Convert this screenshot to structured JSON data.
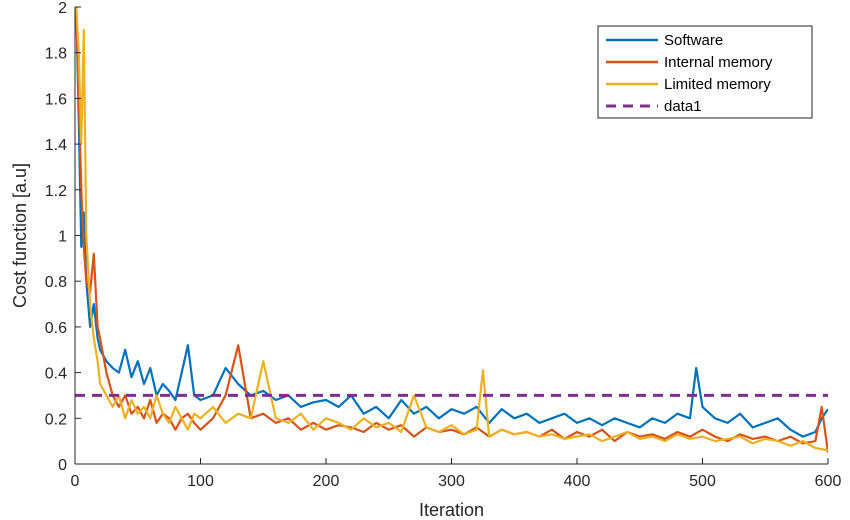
{
  "chart_data": {
    "type": "line",
    "title": "",
    "xlabel": "Iteration",
    "ylabel": "Cost function [a.u]",
    "xlim": [
      0,
      600
    ],
    "ylim": [
      0,
      2
    ],
    "xticks": [
      0,
      100,
      200,
      300,
      400,
      500,
      600
    ],
    "yticks": [
      0,
      0.2,
      0.4,
      0.6,
      0.8,
      1,
      1.2,
      1.4,
      1.6,
      1.8,
      2
    ],
    "grid": false,
    "legend_position": "top-right",
    "series": [
      {
        "name": "Software",
        "color": "#0072BD",
        "style": "solid",
        "x": [
          1,
          3,
          5,
          7,
          9,
          12,
          15,
          18,
          20,
          25,
          30,
          35,
          40,
          45,
          50,
          55,
          60,
          65,
          70,
          75,
          80,
          85,
          90,
          95,
          100,
          110,
          120,
          130,
          140,
          150,
          160,
          170,
          180,
          190,
          200,
          210,
          220,
          230,
          240,
          250,
          260,
          270,
          280,
          290,
          300,
          310,
          320,
          330,
          340,
          350,
          360,
          370,
          380,
          390,
          400,
          410,
          420,
          430,
          440,
          450,
          460,
          470,
          480,
          490,
          495,
          500,
          510,
          520,
          530,
          540,
          550,
          560,
          570,
          580,
          590,
          595,
          600
        ],
        "y": [
          2.0,
          1.5,
          0.95,
          1.1,
          0.8,
          0.6,
          0.7,
          0.55,
          0.5,
          0.45,
          0.42,
          0.4,
          0.5,
          0.38,
          0.45,
          0.35,
          0.42,
          0.3,
          0.35,
          0.32,
          0.28,
          0.4,
          0.52,
          0.3,
          0.28,
          0.3,
          0.42,
          0.35,
          0.3,
          0.32,
          0.28,
          0.3,
          0.25,
          0.27,
          0.28,
          0.25,
          0.3,
          0.22,
          0.25,
          0.2,
          0.28,
          0.22,
          0.25,
          0.2,
          0.24,
          0.22,
          0.25,
          0.18,
          0.24,
          0.2,
          0.22,
          0.18,
          0.2,
          0.22,
          0.18,
          0.2,
          0.17,
          0.2,
          0.18,
          0.16,
          0.2,
          0.18,
          0.22,
          0.2,
          0.42,
          0.25,
          0.2,
          0.18,
          0.22,
          0.16,
          0.18,
          0.2,
          0.15,
          0.12,
          0.14,
          0.2,
          0.24
        ]
      },
      {
        "name": "Internal memory",
        "color": "#D95319",
        "style": "solid",
        "x": [
          1,
          3,
          5,
          7,
          9,
          12,
          15,
          18,
          20,
          25,
          30,
          35,
          40,
          45,
          50,
          55,
          60,
          65,
          70,
          75,
          80,
          85,
          90,
          95,
          100,
          110,
          120,
          130,
          140,
          150,
          160,
          170,
          180,
          190,
          200,
          210,
          220,
          230,
          240,
          250,
          260,
          270,
          280,
          290,
          300,
          310,
          320,
          330,
          340,
          350,
          360,
          370,
          380,
          390,
          400,
          410,
          420,
          430,
          440,
          450,
          460,
          470,
          480,
          490,
          500,
          510,
          520,
          530,
          540,
          550,
          560,
          570,
          580,
          590,
          595,
          600
        ],
        "y": [
          2.0,
          1.6,
          1.2,
          0.95,
          0.8,
          0.75,
          0.92,
          0.6,
          0.55,
          0.4,
          0.3,
          0.25,
          0.3,
          0.22,
          0.25,
          0.2,
          0.28,
          0.18,
          0.22,
          0.2,
          0.15,
          0.2,
          0.22,
          0.18,
          0.15,
          0.2,
          0.3,
          0.52,
          0.2,
          0.22,
          0.18,
          0.2,
          0.15,
          0.18,
          0.15,
          0.17,
          0.16,
          0.14,
          0.18,
          0.15,
          0.17,
          0.12,
          0.16,
          0.14,
          0.15,
          0.13,
          0.16,
          0.12,
          0.15,
          0.13,
          0.14,
          0.12,
          0.15,
          0.11,
          0.14,
          0.12,
          0.15,
          0.1,
          0.14,
          0.12,
          0.13,
          0.11,
          0.14,
          0.12,
          0.15,
          0.12,
          0.1,
          0.13,
          0.11,
          0.12,
          0.1,
          0.12,
          0.09,
          0.1,
          0.25,
          0.05
        ]
      },
      {
        "name": "Limited memory",
        "color": "#EDB120",
        "style": "solid",
        "x": [
          1,
          3,
          5,
          7,
          9,
          12,
          15,
          18,
          20,
          25,
          30,
          35,
          40,
          45,
          50,
          55,
          60,
          65,
          70,
          75,
          80,
          85,
          90,
          95,
          100,
          110,
          120,
          130,
          140,
          150,
          160,
          170,
          180,
          190,
          200,
          210,
          220,
          230,
          240,
          250,
          260,
          270,
          280,
          290,
          300,
          310,
          320,
          325,
          330,
          340,
          350,
          360,
          370,
          380,
          390,
          400,
          410,
          420,
          430,
          440,
          450,
          460,
          470,
          480,
          490,
          500,
          510,
          520,
          530,
          540,
          550,
          560,
          570,
          580,
          590,
          600
        ],
        "y": [
          2.0,
          1.8,
          1.4,
          1.9,
          1.0,
          0.7,
          0.55,
          0.45,
          0.35,
          0.3,
          0.25,
          0.3,
          0.2,
          0.28,
          0.22,
          0.25,
          0.2,
          0.3,
          0.22,
          0.18,
          0.25,
          0.2,
          0.15,
          0.22,
          0.2,
          0.25,
          0.18,
          0.22,
          0.2,
          0.45,
          0.2,
          0.18,
          0.22,
          0.15,
          0.2,
          0.18,
          0.15,
          0.2,
          0.16,
          0.18,
          0.14,
          0.3,
          0.16,
          0.14,
          0.17,
          0.13,
          0.15,
          0.41,
          0.12,
          0.15,
          0.13,
          0.14,
          0.12,
          0.13,
          0.11,
          0.12,
          0.13,
          0.1,
          0.12,
          0.14,
          0.11,
          0.12,
          0.1,
          0.13,
          0.11,
          0.12,
          0.1,
          0.11,
          0.12,
          0.09,
          0.11,
          0.1,
          0.08,
          0.1,
          0.07,
          0.06
        ]
      },
      {
        "name": "data1",
        "color": "#7E2F8E",
        "style": "dashed",
        "x": [
          0,
          600
        ],
        "y": [
          0.3,
          0.3
        ]
      }
    ]
  }
}
